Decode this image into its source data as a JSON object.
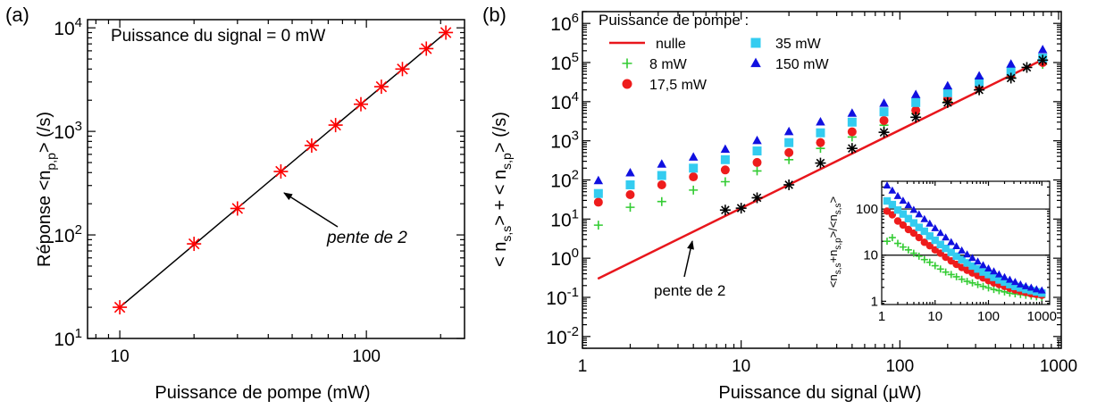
{
  "chart_data": [
    {
      "panel_label": "(a)",
      "type": "scatter",
      "title": "",
      "annotation": "Puissance du signal = 0 mW",
      "xlabel": "Puissance de pompe (mW)",
      "ylabel": "Réponse  <n_{p,p}> (/s)",
      "xscale": "log",
      "yscale": "log",
      "xlim": [
        7.4,
        250
      ],
      "ylim": [
        10,
        12000
      ],
      "xticks": [
        {
          "value": 10,
          "label": "10"
        },
        {
          "value": 100,
          "label": "100"
        }
      ],
      "yticks": [
        {
          "value": 10,
          "mantissa": "10",
          "exponent": "1"
        },
        {
          "value": 100,
          "mantissa": "10",
          "exponent": "2"
        },
        {
          "value": 1000,
          "mantissa": "10",
          "exponent": "3"
        },
        {
          "value": 10000,
          "mantissa": "10",
          "exponent": "4"
        }
      ],
      "series": [
        {
          "marker": "asterisk",
          "color": "#ff0000",
          "x": [
            10,
            20,
            30,
            45,
            60,
            75,
            95,
            115,
            140,
            175,
            210
          ],
          "y": [
            20,
            82,
            180,
            410,
            730,
            1150,
            1830,
            2700,
            4000,
            6300,
            9000
          ]
        },
        {
          "kind": "line",
          "color": "#000000",
          "x": [
            10,
            210
          ],
          "y": [
            20,
            9000
          ]
        }
      ],
      "arrow_annotation": "pente de 2"
    },
    {
      "panel_label": "(b)",
      "type": "scatter",
      "title": "",
      "xlabel": "Puissance du signal (µW)",
      "ylabel": "< n_{s,s}> + < n_{s,p}> (/s)",
      "xscale": "log",
      "yscale": "log",
      "xlim": [
        1,
        1000
      ],
      "ylim": [
        0.005,
        2000000
      ],
      "xticks": [
        {
          "value": 1,
          "label": "1"
        },
        {
          "value": 10,
          "label": "10"
        },
        {
          "value": 100,
          "label": "100"
        },
        {
          "value": 1000,
          "label": "1000"
        }
      ],
      "yticks": [
        {
          "value": 0.01,
          "mantissa": "10",
          "exponent": "-2"
        },
        {
          "value": 0.1,
          "mantissa": "10",
          "exponent": "-1"
        },
        {
          "value": 1,
          "mantissa": "10",
          "exponent": "0"
        },
        {
          "value": 10,
          "mantissa": "10",
          "exponent": "1"
        },
        {
          "value": 100,
          "mantissa": "10",
          "exponent": "2"
        },
        {
          "value": 1000,
          "mantissa": "10",
          "exponent": "3"
        },
        {
          "value": 10000,
          "mantissa": "10",
          "exponent": "4"
        },
        {
          "value": 100000,
          "mantissa": "10",
          "exponent": "5"
        },
        {
          "value": 1000000,
          "mantissa": "10",
          "exponent": "6"
        }
      ],
      "legend_title": "Puissance de pompe :",
      "legend_placement": "top-left",
      "series": [
        {
          "name": "nulle",
          "kind": "line",
          "color": "#e8161c",
          "x": [
            1.25,
            800
          ],
          "y": [
            0.3,
            120000
          ]
        },
        {
          "name": "8 mW",
          "marker": "plus",
          "color": "#33cc33",
          "x": [
            1.26,
            2,
            3.16,
            5,
            7.94,
            12.6,
            20,
            31.6,
            50,
            79.4,
            126,
            200,
            316,
            501,
            794
          ],
          "y": [
            7,
            20,
            28,
            55,
            90,
            170,
            330,
            640,
            1250,
            2500,
            5000,
            10000,
            20000,
            42000,
            90000
          ]
        },
        {
          "name": "17,5 mW",
          "marker": "circle",
          "color": "#ee1c1c",
          "x": [
            1.26,
            2,
            3.16,
            5,
            7.94,
            12.6,
            20,
            31.6,
            50,
            79.4,
            126,
            200,
            316,
            501,
            794
          ],
          "y": [
            27,
            42,
            75,
            120,
            180,
            280,
            500,
            900,
            1700,
            3300,
            6000,
            12000,
            24000,
            48000,
            100000
          ]
        },
        {
          "name": "35 mW",
          "marker": "square",
          "color": "#33ccf0",
          "x": [
            1.26,
            2,
            3.16,
            5,
            7.94,
            12.6,
            20,
            31.6,
            50,
            79.4,
            126,
            200,
            316,
            501,
            794
          ],
          "y": [
            45,
            75,
            130,
            200,
            330,
            550,
            900,
            1600,
            3000,
            5500,
            9500,
            17000,
            32000,
            60000,
            130000
          ]
        },
        {
          "name": "150 mW",
          "marker": "triangle",
          "color": "#1010e0",
          "x": [
            1.26,
            2,
            3.16,
            5,
            7.94,
            12.6,
            20,
            31.6,
            50,
            79.4,
            126,
            200,
            316,
            501,
            794
          ],
          "y": [
            95,
            150,
            250,
            380,
            600,
            1000,
            1700,
            3000,
            5000,
            9000,
            15000,
            25000,
            45000,
            90000,
            210000
          ]
        },
        {
          "marker": "asterisk",
          "color": "#000000",
          "x": [
            7.94,
            10,
            12.6,
            20,
            31.6,
            50,
            79.4,
            126,
            200,
            316,
            501,
            631,
            794
          ],
          "y": [
            17,
            19,
            35,
            75,
            270,
            640,
            1650,
            4000,
            9500,
            20000,
            40000,
            75000,
            115000
          ]
        }
      ],
      "arrow_annotation": "pente de 2"
    },
    {
      "type": "scatter",
      "role": "inset",
      "ylabel": "<n_{s,s}+n_{s,p}>/<n_{s,s}>",
      "xscale": "log",
      "yscale": "log",
      "xlim": [
        1,
        1400
      ],
      "ylim": [
        0.85,
        400
      ],
      "xticks": [
        {
          "value": 1,
          "label": "1"
        },
        {
          "value": 10,
          "label": "10"
        },
        {
          "value": 100,
          "label": "100"
        },
        {
          "value": 1000,
          "label": "1000"
        }
      ],
      "yticks": [
        {
          "value": 1,
          "label": "1"
        },
        {
          "value": 10,
          "label": "10"
        },
        {
          "value": 100,
          "label": "100"
        }
      ],
      "hlines": [
        10,
        100
      ],
      "series": [
        {
          "name": "8 mW",
          "marker": "plus",
          "color": "#33cc33",
          "x": [
            1.26,
            1.58,
            2,
            2.51,
            3.16,
            3.98,
            5,
            6.31,
            7.94,
            10,
            12.6,
            15.8,
            20,
            25.1,
            31.6,
            39.8,
            50,
            63.1,
            79.4,
            100,
            126,
            158,
            200,
            251,
            316,
            398,
            501,
            631,
            794,
            1000
          ],
          "y": [
            20,
            24,
            18,
            15,
            13,
            11,
            9.5,
            8,
            7,
            5.9,
            5,
            4.3,
            3.8,
            3.4,
            3,
            2.7,
            2.5,
            2.3,
            2.1,
            1.95,
            1.8,
            1.7,
            1.6,
            1.5,
            1.45,
            1.4,
            1.35,
            1.3,
            1.25,
            1.22
          ]
        },
        {
          "name": "17,5 mW",
          "marker": "circle",
          "color": "#ee1c1c",
          "x": [
            1.26,
            1.58,
            2,
            2.51,
            3.16,
            3.98,
            5,
            6.31,
            7.94,
            10,
            12.6,
            15.8,
            20,
            25.1,
            31.6,
            39.8,
            50,
            63.1,
            79.4,
            100,
            126,
            158,
            200,
            251,
            316,
            398,
            501,
            631,
            794,
            1000
          ],
          "y": [
            90,
            75,
            55,
            45,
            36,
            30,
            24,
            19,
            16,
            13,
            11,
            9,
            7.5,
            6.3,
            5.4,
            4.7,
            4.1,
            3.6,
            3.2,
            2.8,
            2.5,
            2.3,
            2.1,
            1.9,
            1.75,
            1.65,
            1.55,
            1.45,
            1.4,
            1.35
          ]
        },
        {
          "name": "35 mW",
          "marker": "square",
          "color": "#33ccf0",
          "x": [
            1.26,
            1.58,
            2,
            2.51,
            3.16,
            3.98,
            5,
            6.31,
            7.94,
            10,
            12.6,
            15.8,
            20,
            25.1,
            31.6,
            39.8,
            50,
            63.1,
            79.4,
            100,
            126,
            158,
            200,
            251,
            316,
            398,
            501,
            631,
            794,
            1000
          ],
          "y": [
            150,
            125,
            95,
            78,
            62,
            50,
            40,
            33,
            26,
            21,
            17,
            14,
            11.5,
            9.5,
            8,
            6.8,
            5.8,
            5,
            4.3,
            3.8,
            3.3,
            2.9,
            2.6,
            2.3,
            2.1,
            1.95,
            1.8,
            1.7,
            1.6,
            1.5
          ]
        },
        {
          "name": "150 mW",
          "marker": "triangle",
          "color": "#1010e0",
          "x": [
            1.26,
            1.58,
            2,
            2.51,
            3.16,
            3.98,
            5,
            6.31,
            7.94,
            10,
            12.6,
            15.8,
            20,
            25.1,
            31.6,
            39.8,
            50,
            63.1,
            79.4,
            100,
            126,
            158,
            200,
            251,
            316,
            398,
            501,
            631,
            794,
            1000
          ],
          "y": [
            320,
            250,
            190,
            150,
            120,
            95,
            76,
            60,
            48,
            38,
            30,
            24,
            19,
            15.5,
            12.5,
            10.3,
            8.6,
            7.2,
            6,
            5.1,
            4.4,
            3.8,
            3.3,
            2.9,
            2.6,
            2.3,
            2.1,
            1.95,
            1.8,
            1.7
          ]
        }
      ]
    }
  ]
}
